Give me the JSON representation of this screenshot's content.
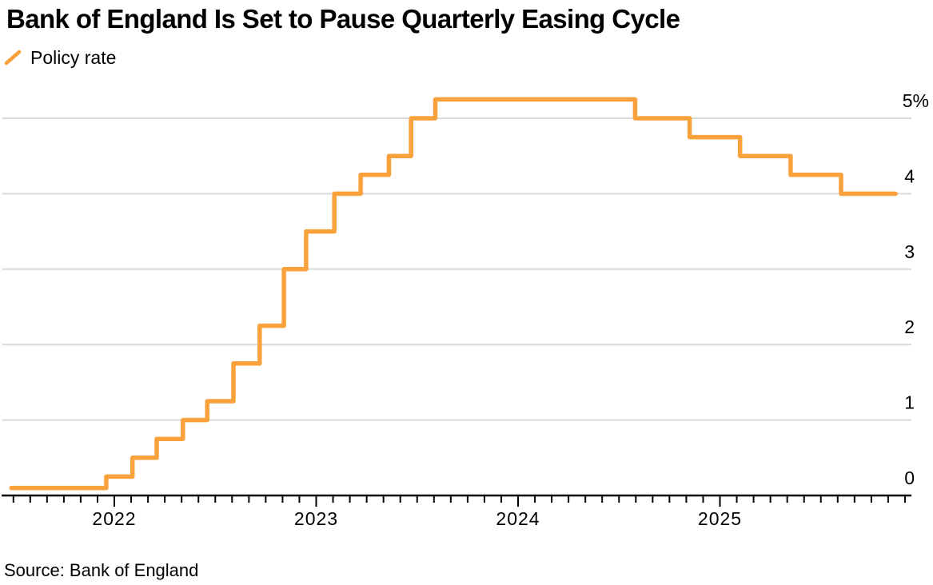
{
  "header": {
    "title": "Bank of England Is Set to Pause Quarterly Easing Cycle"
  },
  "legend": {
    "label": "Policy rate",
    "marker": "diagonal-line",
    "marker_color": "#F9A23B"
  },
  "footer": {
    "source": "Source: Bank of England"
  },
  "colors": {
    "series_orange": "#F9A23B",
    "gridline_gray": "#D9D9D9",
    "axis_black": "#000000",
    "background": "#FFFFFF",
    "text": "#000000"
  },
  "chart_data": {
    "type": "line",
    "subtype": "step",
    "title": "Bank of England Is Set to Pause Quarterly Easing Cycle",
    "legend_position": "top-left",
    "grid": {
      "horizontal": true,
      "vertical": false,
      "color": "#D9D9D9"
    },
    "x_axis": {
      "range_decimal_years": [
        2021.46,
        2025.95
      ],
      "tick_interval": "monthly",
      "year_tick_longer": true,
      "year_labels": [
        "2022",
        "2023",
        "2024",
        "2025"
      ]
    },
    "y_axis": {
      "side": "right",
      "unit": "%",
      "range": [
        0,
        5.5
      ],
      "ticks": [
        0,
        1,
        2,
        3,
        4,
        5
      ],
      "tick_labels": [
        "0",
        "1",
        "2",
        "3",
        "4",
        "5%"
      ]
    },
    "series": [
      {
        "name": "Policy rate",
        "color": "#F9A23B",
        "stroke_width": 5.5,
        "points_note": "x = decimal year of each rate change read off axis, y = policy rate %; first/last points are line endpoints",
        "points": [
          {
            "x": 2021.49,
            "y": 0.1,
            "date": "mid-2021 (series start)"
          },
          {
            "x": 2021.96,
            "y": 0.25,
            "date": "Dec 2021"
          },
          {
            "x": 2022.09,
            "y": 0.5,
            "date": "Feb 2022"
          },
          {
            "x": 2022.21,
            "y": 0.75,
            "date": "Mar 2022"
          },
          {
            "x": 2022.34,
            "y": 1.0,
            "date": "May 2022"
          },
          {
            "x": 2022.46,
            "y": 1.25,
            "date": "Jun 2022"
          },
          {
            "x": 2022.59,
            "y": 1.75,
            "date": "Aug 2022"
          },
          {
            "x": 2022.72,
            "y": 2.25,
            "date": "Sep 2022"
          },
          {
            "x": 2022.84,
            "y": 3.0,
            "date": "Nov 2022"
          },
          {
            "x": 2022.95,
            "y": 3.5,
            "date": "Dec 2022"
          },
          {
            "x": 2023.09,
            "y": 4.0,
            "date": "Feb 2023"
          },
          {
            "x": 2023.22,
            "y": 4.25,
            "date": "Mar 2023"
          },
          {
            "x": 2023.36,
            "y": 4.5,
            "date": "May 2023"
          },
          {
            "x": 2023.47,
            "y": 5.0,
            "date": "Jun 2023"
          },
          {
            "x": 2023.59,
            "y": 5.25,
            "date": "Aug 2023"
          },
          {
            "x": 2024.58,
            "y": 5.0,
            "date": "Aug 2024"
          },
          {
            "x": 2024.85,
            "y": 4.75,
            "date": "Nov 2024"
          },
          {
            "x": 2025.1,
            "y": 4.5,
            "date": "Feb 2025"
          },
          {
            "x": 2025.35,
            "y": 4.25,
            "date": "May 2025"
          },
          {
            "x": 2025.6,
            "y": 4.0,
            "date": "Aug 2025"
          },
          {
            "x": 2025.87,
            "y": 4.0,
            "date": "late 2025 (series end)"
          }
        ]
      }
    ]
  }
}
